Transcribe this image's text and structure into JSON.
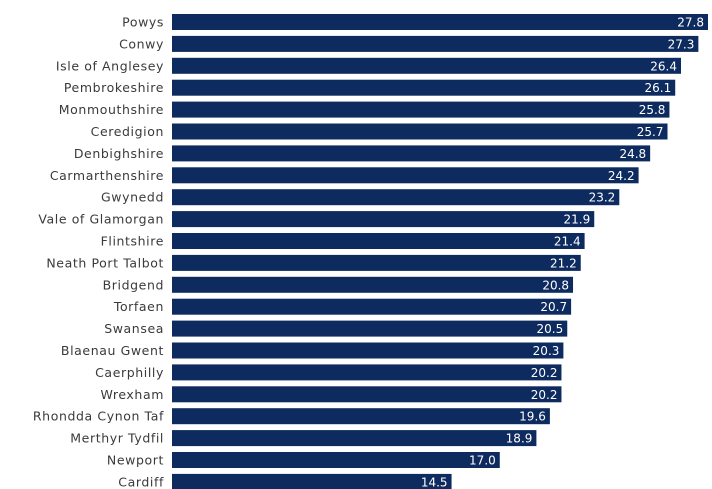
{
  "chart_data": {
    "type": "bar",
    "orientation": "horizontal",
    "categories": [
      "Powys",
      "Conwy",
      "Isle of Anglesey",
      "Pembrokeshire",
      "Monmouthshire",
      "Ceredigion",
      "Denbighshire",
      "Carmarthenshire",
      "Gwynedd",
      "Vale of Glamorgan",
      "Flintshire",
      "Neath Port Talbot",
      "Bridgend",
      "Torfaen",
      "Swansea",
      "Blaenau Gwent",
      "Caerphilly",
      "Wrexham",
      "Rhondda Cynon Taf",
      "Merthyr Tydfil",
      "Newport",
      "Cardiff"
    ],
    "values": [
      27.8,
      27.3,
      26.4,
      26.1,
      25.8,
      25.7,
      24.8,
      24.2,
      23.2,
      21.9,
      21.4,
      21.2,
      20.8,
      20.7,
      20.5,
      20.3,
      20.2,
      20.2,
      19.6,
      18.9,
      17.0,
      14.5
    ],
    "value_labels": [
      "27.8",
      "27.3",
      "26.4",
      "26.1",
      "25.8",
      "25.7",
      "24.8",
      "24.2",
      "23.2",
      "21.9",
      "21.4",
      "21.2",
      "20.8",
      "20.7",
      "20.5",
      "20.3",
      "20.2",
      "20.2",
      "19.6",
      "18.9",
      "17.0",
      "14.5"
    ],
    "color": "#0e2b5f"
  }
}
